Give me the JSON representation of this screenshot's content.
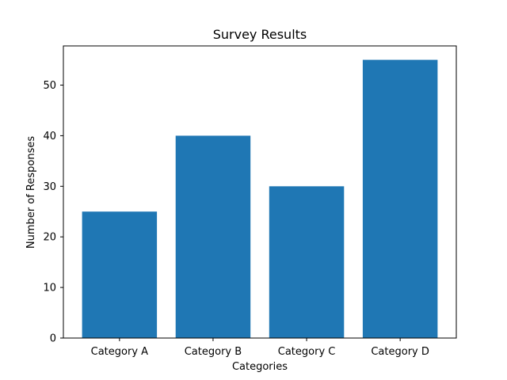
{
  "chart_data": {
    "type": "bar",
    "title": "Survey Results",
    "xlabel": "Categories",
    "ylabel": "Number of Responses",
    "categories": [
      "Category A",
      "Category B",
      "Category C",
      "Category D"
    ],
    "values": [
      25,
      40,
      30,
      55
    ],
    "ylim": [
      0,
      57.75
    ],
    "yticks": [
      0,
      10,
      20,
      30,
      40,
      50
    ],
    "grid": false,
    "bar_color": "#1f77b4"
  }
}
